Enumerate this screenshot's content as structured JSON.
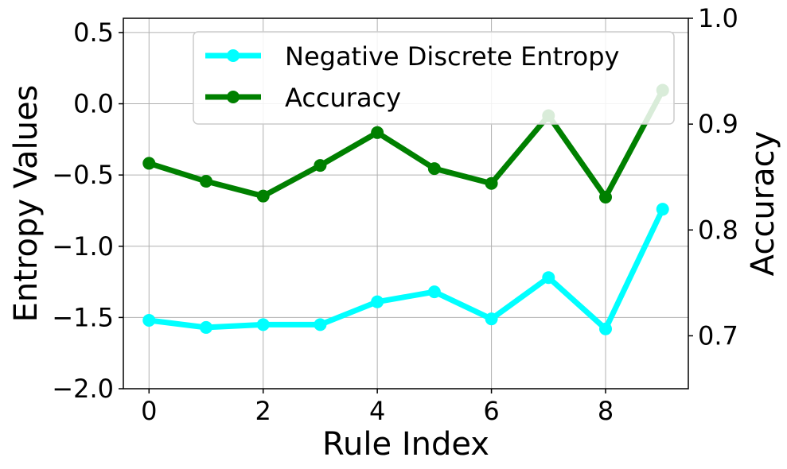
{
  "chart_data": {
    "type": "line",
    "xlabel": "Rule Index",
    "ylabel_left": "Entropy Values",
    "ylabel_right": "Accuracy",
    "x": [
      0,
      1,
      2,
      3,
      4,
      5,
      6,
      7,
      8,
      9
    ],
    "x_ticks": [
      "0",
      "2",
      "4",
      "6",
      "8"
    ],
    "x_tick_values": [
      0,
      2,
      4,
      6,
      8
    ],
    "xlim": [
      -0.45,
      9.45
    ],
    "ylim_left": [
      -2.0,
      0.6
    ],
    "y_left_ticks": [
      "−2.0",
      "−1.5",
      "−1.0",
      "−0.5",
      "0.0",
      "0.5"
    ],
    "y_left_tick_values": [
      -2.0,
      -1.5,
      -1.0,
      -0.5,
      0.0,
      0.5
    ],
    "ylim_right": [
      0.65,
      1.0
    ],
    "y_right_ticks": [
      "0.7",
      "0.8",
      "0.9",
      "1.0"
    ],
    "y_right_tick_values": [
      0.7,
      0.8,
      0.9,
      1.0
    ],
    "grid": true,
    "legend_position": "top-right",
    "series": [
      {
        "name": "Negative Discrete Entropy",
        "axis": "left",
        "color": "#00ffff",
        "values": [
          -1.52,
          -1.57,
          -1.55,
          -1.55,
          -1.39,
          -1.32,
          -1.51,
          -1.22,
          -1.58,
          -0.74
        ]
      },
      {
        "name": "Accuracy",
        "axis": "right",
        "color": "#008000",
        "values": [
          0.863,
          0.846,
          0.832,
          0.861,
          0.892,
          0.858,
          0.844,
          0.908,
          0.831,
          0.932
        ]
      }
    ]
  }
}
